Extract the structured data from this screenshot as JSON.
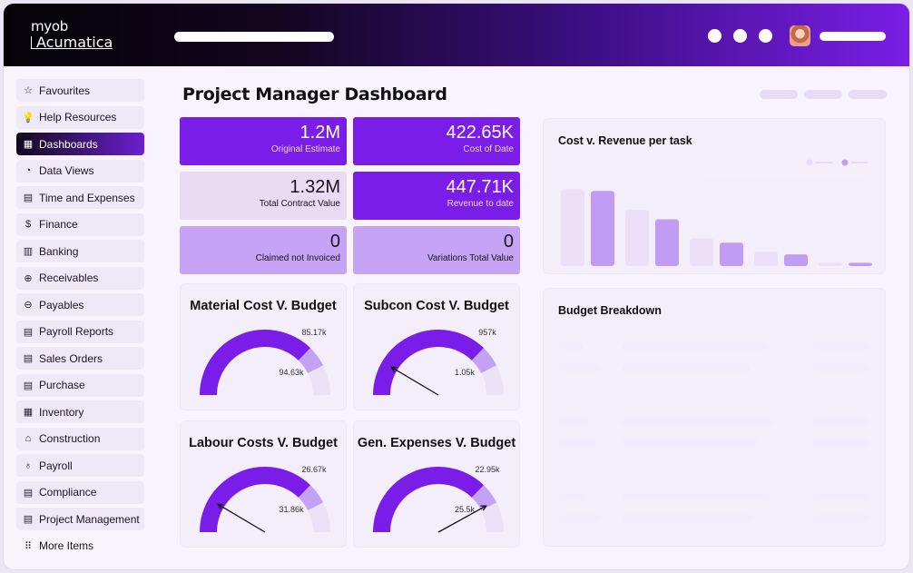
{
  "header": {
    "logo_top": "myob",
    "logo_bottom": "Acumatica"
  },
  "sidebar": {
    "items": [
      {
        "label": "Favourites",
        "icon": "star-icon",
        "glyph": "☆"
      },
      {
        "label": "Help Resources",
        "icon": "lightbulb-icon",
        "glyph": "💡"
      },
      {
        "label": "Dashboards",
        "icon": "dashboard-icon",
        "glyph": "▦",
        "active": true
      },
      {
        "label": "Data Views",
        "icon": "pie-chart-icon",
        "glyph": "◔"
      },
      {
        "label": "Time and Expenses",
        "icon": "document-icon",
        "glyph": "▤"
      },
      {
        "label": "Finance",
        "icon": "dollar-icon",
        "glyph": "$"
      },
      {
        "label": "Banking",
        "icon": "bank-icon",
        "glyph": "▥"
      },
      {
        "label": "Receivables",
        "icon": "receivables-icon",
        "glyph": "⊕"
      },
      {
        "label": "Payables",
        "icon": "payables-icon",
        "glyph": "⊖"
      },
      {
        "label": "Payroll Reports",
        "icon": "report-icon",
        "glyph": "▤"
      },
      {
        "label": "Sales Orders",
        "icon": "sales-icon",
        "glyph": "▤"
      },
      {
        "label": "Purchase",
        "icon": "purchase-icon",
        "glyph": "▤"
      },
      {
        "label": "Inventory",
        "icon": "inventory-icon",
        "glyph": "▦"
      },
      {
        "label": "Construction",
        "icon": "construction-icon",
        "glyph": "⌂"
      },
      {
        "label": "Payroll",
        "icon": "payroll-icon",
        "glyph": "♁"
      },
      {
        "label": "Compliance",
        "icon": "compliance-icon",
        "glyph": "▤"
      },
      {
        "label": "Project Management",
        "icon": "project-icon",
        "glyph": "▤"
      },
      {
        "label": "More Items",
        "icon": "grid-icon",
        "glyph": "⠿"
      }
    ]
  },
  "main": {
    "title": "Project Manager Dashboard",
    "kpis": [
      {
        "value": "1.2M",
        "label": "Original Estimate",
        "style": "dark"
      },
      {
        "value": "422.65K",
        "label": "Cost of Date",
        "style": "dark"
      },
      {
        "value": "1.32M",
        "label": "Total Contract Value",
        "style": "pale"
      },
      {
        "value": "447.71K",
        "label": "Revenue to date",
        "style": "dark"
      },
      {
        "value": "0",
        "label": "Claimed not Invoiced",
        "style": "mid"
      },
      {
        "value": "0",
        "label": "Variations Total Value",
        "style": "mid"
      }
    ],
    "gauges": [
      {
        "title": "Material Cost V. Budget",
        "upper": "85.17k",
        "lower": "94.63k",
        "needle": null
      },
      {
        "title": "Subcon Cost V. Budget",
        "upper": "957k",
        "lower": "1.05k",
        "needle": 0.17
      },
      {
        "title": "Labour Costs V. Budget",
        "upper": "26.67k",
        "lower": "31.86k",
        "needle": 0.17
      },
      {
        "title": "Gen. Expenses V. Budget",
        "upper": "22.95k",
        "lower": "25.5k",
        "needle": 0.84
      }
    ],
    "cost_chart": {
      "title": "Cost v. Revenue per task",
      "pairs": [
        [
          92,
          90
        ],
        [
          67,
          56
        ],
        [
          33,
          28
        ],
        [
          17,
          14
        ],
        [
          4,
          4
        ]
      ],
      "colors": [
        "#ebe0f7",
        "#c19cf5"
      ]
    },
    "budget": {
      "title": "Budget Breakdown"
    }
  },
  "colors": {
    "accent": "#7a1de9",
    "accent_light": "#c6a3f5",
    "accent_pale": "#e7dcf3"
  }
}
